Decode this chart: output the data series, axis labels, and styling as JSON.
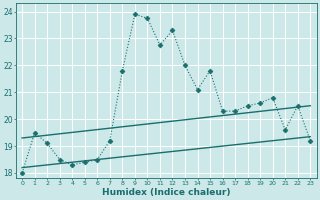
{
  "title": "",
  "xlabel": "Humidex (Indice chaleur)",
  "bg_color": "#cce8e8",
  "grid_color": "#ffffff",
  "line_color": "#1a6e6e",
  "xlim": [
    -0.5,
    23.5
  ],
  "ylim": [
    17.8,
    24.3
  ],
  "yticks": [
    18,
    19,
    20,
    21,
    22,
    23,
    24
  ],
  "xticks": [
    0,
    1,
    2,
    3,
    4,
    5,
    6,
    7,
    8,
    9,
    10,
    11,
    12,
    13,
    14,
    15,
    16,
    17,
    18,
    19,
    20,
    21,
    22,
    23
  ],
  "main_x": [
    0,
    1,
    2,
    3,
    4,
    5,
    6,
    7,
    8,
    9,
    10,
    11,
    12,
    13,
    14,
    15,
    16,
    17,
    18,
    19,
    20,
    21,
    22,
    23
  ],
  "main_y": [
    18.0,
    19.5,
    19.1,
    18.5,
    18.3,
    18.4,
    18.5,
    19.2,
    21.8,
    23.9,
    23.75,
    22.75,
    23.3,
    22.0,
    21.1,
    21.8,
    20.3,
    20.3,
    20.5,
    20.6,
    20.8,
    19.6,
    20.5,
    19.2
  ],
  "trend1_x": [
    0,
    23
  ],
  "trend1_y": [
    19.3,
    20.5
  ],
  "trend2_x": [
    0,
    23
  ],
  "trend2_y": [
    18.2,
    19.35
  ]
}
